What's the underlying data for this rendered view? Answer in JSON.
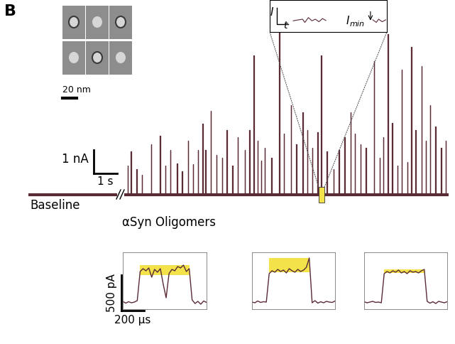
{
  "chart_data": {
    "type": "line",
    "panel_label": "B",
    "tick_labels": false,
    "color": "#5a2a35",
    "trace": {
      "label": "αSyn Oligomers",
      "baseline_label": "Baseline",
      "x": [
        0.15,
        0.3,
        0.52,
        0.76,
        1.15,
        1.52,
        1.76,
        1.97,
        2.27,
        2.48,
        2.73,
        2.94,
        3.15,
        3.36,
        3.48,
        3.7,
        3.94,
        4.18,
        4.39,
        4.61,
        4.85,
        5.15,
        5.36,
        5.52,
        5.7,
        5.85,
        6.0,
        6.3,
        6.61,
        6.82,
        7.12,
        7.36,
        7.61,
        7.82,
        8.03,
        8.27,
        8.42,
        8.64,
        8.94,
        9.18,
        9.42,
        9.67,
        9.85,
        10.09,
        10.33,
        10.67,
        10.91,
        11.06,
        11.27,
        11.45,
        11.67,
        11.85,
        12.09,
        12.27,
        12.45,
        12.7,
        12.88,
        13.06,
        13.3,
        13.52,
        13.73
      ],
      "values": [
        1.24,
        1.85,
        1.09,
        0.85,
        2.15,
        2.52,
        1.24,
        1.91,
        1.33,
        1.0,
        2.3,
        1.3,
        1.91,
        3.03,
        1.91,
        3.58,
        1.7,
        1.55,
        2.76,
        1.24,
        2.45,
        1.91,
        2.76,
        5.94,
        2.3,
        1.45,
        2.0,
        1.55,
        7.45,
        2.61,
        3.82,
        2.15,
        3.52,
        2.76,
        2.0,
        2.67,
        5.94,
        1.85,
        1.09,
        1.91,
        2.45,
        3.52,
        2.61,
        2.15,
        2.0,
        5.7,
        1.55,
        2.45,
        6.85,
        3.06,
        1.24,
        5.33,
        1.39,
        6.3,
        2.76,
        5.48,
        2.3,
        3.82,
        2.91,
        2.0,
        2.3
      ],
      "xlim": [
        0,
        13.85
      ],
      "ylim": [
        -0.5,
        7.7
      ],
      "highlight": [
        8.3,
        8.55
      ]
    },
    "scale_bars": [
      {
        "value": 1,
        "label": "1 nA"
      },
      {
        "value": 1,
        "label": "1 s"
      },
      {
        "value": 500,
        "label": "500 pA"
      },
      {
        "value": 200,
        "label": "200 µs"
      }
    ],
    "micrographs": {
      "count": 6,
      "scale_bar": {
        "value": 20,
        "label": "20 nm"
      }
    },
    "inset": {
      "axis_labels": [
        "I",
        "t"
      ],
      "annotation": "I",
      "annotation_subscript": "min"
    },
    "events_xlim": [
      0,
      725
    ],
    "events_ylim": [
      -100,
      700
    ],
    "events": [
      {
        "x": [
          0,
          25,
          50,
          75,
          100,
          125,
          150,
          175,
          200,
          225,
          250,
          275,
          300,
          325,
          350,
          375,
          400,
          425,
          450,
          475,
          500,
          525,
          550,
          575,
          600,
          625,
          650,
          675,
          700,
          725
        ],
        "values": [
          10,
          -15,
          5,
          -10,
          0,
          20,
          430,
          470,
          440,
          480,
          350,
          460,
          420,
          470,
          250,
          60,
          400,
          460,
          440,
          500,
          480,
          520,
          430,
          470,
          30,
          -20,
          10,
          -30,
          15,
          -5
        ],
        "highlight": [
          150,
          575
        ]
      },
      {
        "x": [
          0,
          25,
          50,
          75,
          100,
          125,
          150,
          175,
          200,
          225,
          250,
          275,
          300,
          325,
          350,
          375,
          400,
          425,
          450,
          475,
          500,
          525,
          550,
          575,
          600,
          625,
          650,
          675,
          700,
          725
        ],
        "values": [
          0,
          -10,
          15,
          -5,
          5,
          0,
          400,
          440,
          420,
          460,
          430,
          450,
          410,
          470,
          440,
          420,
          460,
          430,
          450,
          490,
          620,
          -10,
          20,
          -15,
          5,
          -10,
          10,
          0,
          -5,
          15
        ],
        "highlight": [
          150,
          500
        ]
      },
      {
        "x": [
          0,
          25,
          50,
          75,
          100,
          125,
          150,
          175,
          200,
          225,
          250,
          275,
          300,
          325,
          350,
          375,
          400,
          425,
          450,
          475,
          500,
          525,
          550,
          575,
          600,
          625,
          650,
          675,
          700,
          725
        ],
        "values": [
          5,
          -10,
          0,
          10,
          -5,
          0,
          -10,
          400,
          430,
          410,
          440,
          420,
          450,
          410,
          430,
          400,
          440,
          420,
          430,
          410,
          440,
          460,
          10,
          -15,
          5,
          -20,
          10,
          0,
          -10,
          5
        ],
        "highlight": [
          175,
          525
        ]
      }
    ]
  }
}
